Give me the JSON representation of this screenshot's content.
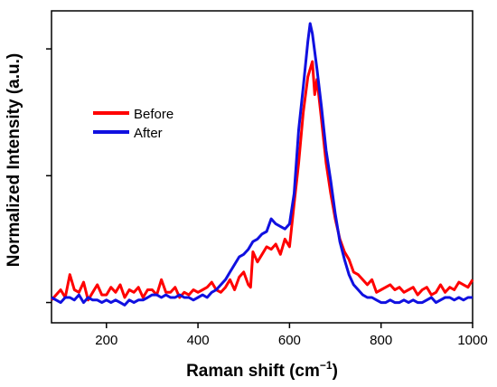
{
  "chart_data": {
    "type": "line",
    "title": "",
    "xlabel": "Raman shift (cm",
    "xlabel_sup": "−1",
    "xlabel_close": ")",
    "ylabel": "Normalized Intensity (a.u.)",
    "xlim": [
      80,
      1000
    ],
    "ylim": [
      -0.08,
      1.15
    ],
    "x_ticks": [
      200,
      400,
      600,
      800,
      1000
    ],
    "x_tick_labels": [
      "200",
      "400",
      "600",
      "800",
      "1000"
    ],
    "y_ticks": [
      0,
      0.5,
      1.0
    ],
    "y_tick_labels_shown": false,
    "grid": false,
    "legend_position": "upper-left",
    "series": [
      {
        "name": "Before",
        "color": "#ff0000",
        "x": [
          80,
          90,
          100,
          110,
          120,
          130,
          140,
          150,
          160,
          170,
          180,
          190,
          200,
          210,
          220,
          230,
          240,
          250,
          260,
          270,
          280,
          290,
          300,
          310,
          320,
          330,
          340,
          350,
          360,
          370,
          380,
          390,
          400,
          410,
          420,
          430,
          440,
          450,
          460,
          470,
          480,
          490,
          500,
          510,
          515,
          520,
          530,
          540,
          550,
          560,
          570,
          580,
          590,
          600,
          610,
          620,
          630,
          640,
          650,
          655,
          660,
          670,
          680,
          690,
          700,
          710,
          720,
          730,
          740,
          750,
          760,
          770,
          780,
          790,
          800,
          810,
          820,
          830,
          840,
          850,
          860,
          870,
          880,
          890,
          900,
          910,
          920,
          930,
          940,
          950,
          960,
          970,
          980,
          990,
          1000
        ],
        "y": [
          0.01,
          0.03,
          0.05,
          0.02,
          0.11,
          0.05,
          0.04,
          0.08,
          0.01,
          0.04,
          0.07,
          0.03,
          0.03,
          0.06,
          0.04,
          0.07,
          0.02,
          0.05,
          0.04,
          0.06,
          0.02,
          0.05,
          0.05,
          0.03,
          0.09,
          0.04,
          0.04,
          0.06,
          0.02,
          0.04,
          0.03,
          0.05,
          0.04,
          0.05,
          0.06,
          0.08,
          0.05,
          0.04,
          0.06,
          0.09,
          0.05,
          0.1,
          0.12,
          0.07,
          0.06,
          0.2,
          0.16,
          0.19,
          0.22,
          0.21,
          0.23,
          0.19,
          0.25,
          0.22,
          0.39,
          0.55,
          0.75,
          0.89,
          0.95,
          0.82,
          0.88,
          0.72,
          0.55,
          0.43,
          0.33,
          0.25,
          0.2,
          0.17,
          0.12,
          0.11,
          0.09,
          0.07,
          0.09,
          0.04,
          0.05,
          0.06,
          0.07,
          0.05,
          0.06,
          0.04,
          0.05,
          0.06,
          0.03,
          0.05,
          0.06,
          0.03,
          0.04,
          0.07,
          0.04,
          0.06,
          0.05,
          0.08,
          0.07,
          0.06,
          0.09
        ]
      },
      {
        "name": "After",
        "color": "#1010e0",
        "x": [
          80,
          90,
          100,
          110,
          120,
          130,
          140,
          150,
          160,
          170,
          180,
          190,
          200,
          210,
          220,
          230,
          240,
          250,
          260,
          270,
          280,
          290,
          300,
          310,
          320,
          330,
          340,
          350,
          360,
          370,
          380,
          390,
          400,
          410,
          420,
          430,
          440,
          450,
          460,
          470,
          480,
          490,
          500,
          510,
          520,
          530,
          540,
          550,
          560,
          570,
          580,
          590,
          600,
          610,
          620,
          630,
          640,
          645,
          650,
          660,
          670,
          680,
          690,
          700,
          710,
          720,
          730,
          740,
          750,
          760,
          770,
          780,
          790,
          800,
          810,
          820,
          830,
          840,
          850,
          860,
          870,
          880,
          890,
          900,
          910,
          920,
          930,
          940,
          950,
          960,
          970,
          980,
          990,
          1000
        ],
        "y": [
          0.02,
          0.01,
          0.0,
          0.02,
          0.02,
          0.01,
          0.03,
          0.0,
          0.02,
          0.01,
          0.01,
          0.0,
          0.01,
          0.0,
          0.01,
          0.0,
          -0.01,
          0.01,
          0.0,
          0.01,
          0.01,
          0.02,
          0.03,
          0.03,
          0.02,
          0.03,
          0.02,
          0.02,
          0.03,
          0.02,
          0.02,
          0.01,
          0.02,
          0.03,
          0.02,
          0.04,
          0.05,
          0.07,
          0.09,
          0.12,
          0.15,
          0.18,
          0.19,
          0.21,
          0.24,
          0.25,
          0.27,
          0.28,
          0.33,
          0.31,
          0.3,
          0.29,
          0.31,
          0.43,
          0.68,
          0.85,
          1.03,
          1.1,
          1.06,
          0.92,
          0.77,
          0.6,
          0.48,
          0.35,
          0.24,
          0.17,
          0.11,
          0.07,
          0.05,
          0.03,
          0.02,
          0.02,
          0.01,
          0.0,
          0.0,
          0.01,
          0.0,
          0.0,
          0.01,
          0.0,
          0.01,
          0.0,
          0.0,
          0.01,
          0.02,
          0.0,
          0.01,
          0.02,
          0.02,
          0.01,
          0.02,
          0.01,
          0.02,
          0.02
        ]
      }
    ]
  }
}
